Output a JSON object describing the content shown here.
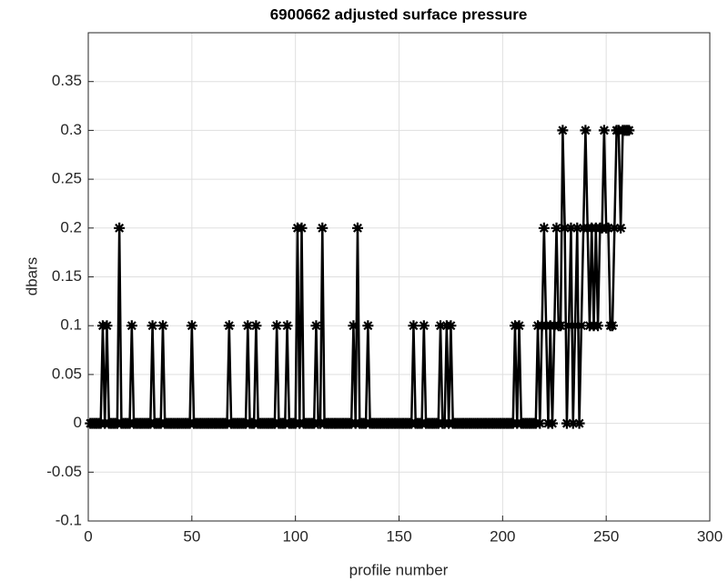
{
  "chart_data": {
    "type": "line",
    "title": "6900662 adjusted surface pressure",
    "x_label": "profile number",
    "y_label": "dbars",
    "xlim": [
      0,
      300
    ],
    "xticks": [
      0,
      50,
      100,
      150,
      200,
      250,
      300
    ],
    "ylim": [
      -0.1,
      0.4
    ],
    "yticks": [
      -0.1,
      -0.05,
      0,
      0.05,
      0.1,
      0.15,
      0.2,
      0.25,
      0.3,
      0.35
    ],
    "grid": true,
    "color": "#000000",
    "marker": "asterisk",
    "x": [
      1,
      2,
      3,
      4,
      5,
      6,
      7,
      8,
      9,
      10,
      11,
      12,
      13,
      14,
      15,
      16,
      17,
      18,
      19,
      20,
      21,
      22,
      23,
      24,
      25,
      26,
      27,
      28,
      29,
      30,
      31,
      32,
      33,
      34,
      35,
      36,
      37,
      38,
      39,
      40,
      41,
      42,
      43,
      44,
      45,
      46,
      47,
      48,
      49,
      50,
      51,
      52,
      53,
      54,
      55,
      56,
      57,
      58,
      59,
      60,
      61,
      62,
      63,
      64,
      65,
      66,
      67,
      68,
      69,
      70,
      71,
      72,
      73,
      74,
      75,
      76,
      77,
      78,
      79,
      80,
      81,
      82,
      83,
      84,
      85,
      86,
      87,
      88,
      89,
      90,
      91,
      92,
      93,
      94,
      95,
      96,
      97,
      98,
      99,
      100,
      101,
      102,
      103,
      104,
      105,
      106,
      107,
      108,
      109,
      110,
      111,
      112,
      113,
      114,
      115,
      116,
      117,
      118,
      119,
      120,
      121,
      122,
      123,
      124,
      125,
      126,
      127,
      128,
      129,
      130,
      131,
      132,
      133,
      134,
      135,
      136,
      137,
      138,
      139,
      140,
      141,
      142,
      143,
      144,
      145,
      146,
      147,
      148,
      149,
      150,
      151,
      152,
      153,
      154,
      155,
      156,
      157,
      158,
      159,
      160,
      161,
      162,
      163,
      164,
      165,
      166,
      167,
      168,
      169,
      170,
      171,
      172,
      173,
      174,
      175,
      176,
      177,
      178,
      179,
      180,
      181,
      182,
      183,
      184,
      185,
      186,
      187,
      188,
      189,
      190,
      191,
      192,
      193,
      194,
      195,
      196,
      197,
      198,
      199,
      200,
      201,
      202,
      203,
      204,
      205,
      206,
      207,
      208,
      209,
      210,
      211,
      212,
      213,
      214,
      215,
      216,
      217,
      218,
      219,
      220,
      221,
      222,
      223,
      224,
      225,
      226,
      227,
      228,
      229,
      230,
      231,
      232,
      233,
      234,
      235,
      236,
      237,
      238,
      239,
      240,
      241,
      242,
      243,
      244,
      245,
      246,
      247,
      248,
      249,
      250,
      251,
      252,
      253,
      254,
      255,
      256,
      257,
      258,
      259,
      260,
      261
    ],
    "values": [
      0,
      0,
      0,
      0,
      0,
      0,
      0.1,
      0,
      0.1,
      0,
      0,
      0,
      0,
      0,
      0.2,
      0,
      0,
      0,
      0,
      0,
      0.1,
      0,
      0,
      0,
      0,
      0,
      0,
      0,
      0,
      0,
      0.1,
      0,
      0,
      0,
      0,
      0.1,
      0,
      0,
      0,
      0,
      0,
      0,
      0,
      0,
      0,
      0,
      0,
      0,
      0,
      0.1,
      0,
      0,
      0,
      0,
      0,
      0,
      0,
      0,
      0,
      0,
      0,
      0,
      0,
      0,
      0,
      0,
      0,
      0.1,
      0,
      0,
      0,
      0,
      0,
      0,
      0,
      0,
      0.1,
      0,
      0,
      0,
      0.1,
      0,
      0,
      0,
      0,
      0,
      0,
      0,
      0,
      0,
      0.1,
      0,
      0,
      0,
      0,
      0.1,
      0,
      0,
      0,
      0,
      0.2,
      0,
      0.2,
      0,
      0,
      0,
      0,
      0,
      0,
      0.1,
      0,
      0,
      0.2,
      0,
      0,
      0,
      0,
      0,
      0,
      0,
      0,
      0,
      0,
      0,
      0,
      0,
      0,
      0.1,
      0,
      0.2,
      0,
      0,
      0,
      0,
      0.1,
      0,
      0,
      0,
      0,
      0,
      0,
      0,
      0,
      0,
      0,
      0,
      0,
      0,
      0,
      0,
      0,
      0,
      0,
      0,
      0,
      0,
      0.1,
      0,
      0,
      0,
      0,
      0.1,
      0,
      0,
      0,
      0,
      0,
      0,
      0,
      0.1,
      0,
      0,
      0.1,
      0,
      0.1,
      0,
      0,
      0,
      0,
      0,
      0,
      0,
      0,
      0,
      0,
      0,
      0,
      0,
      0,
      0,
      0,
      0,
      0,
      0,
      0,
      0,
      0,
      0,
      0,
      0,
      0,
      0,
      0,
      0,
      0,
      0.1,
      0,
      0.1,
      0,
      0,
      0,
      0,
      0,
      0,
      0,
      0,
      0.1,
      0,
      0.1,
      0.2,
      0.1,
      0,
      0.1,
      0,
      0.1,
      0.2,
      0.1,
      0.1,
      0.3,
      0.2,
      0,
      0.1,
      0.2,
      0,
      0.1,
      0.2,
      0,
      0.1,
      0.2,
      0.3,
      0.2,
      0.1,
      0.2,
      0.1,
      0.2,
      0.1,
      0.2,
      0.2,
      0.3,
      0.2,
      0.2,
      0.1,
      0.1,
      0.2,
      0.3,
      0.3,
      0.2,
      0.3,
      0.3,
      0.3,
      0.3
    ]
  }
}
